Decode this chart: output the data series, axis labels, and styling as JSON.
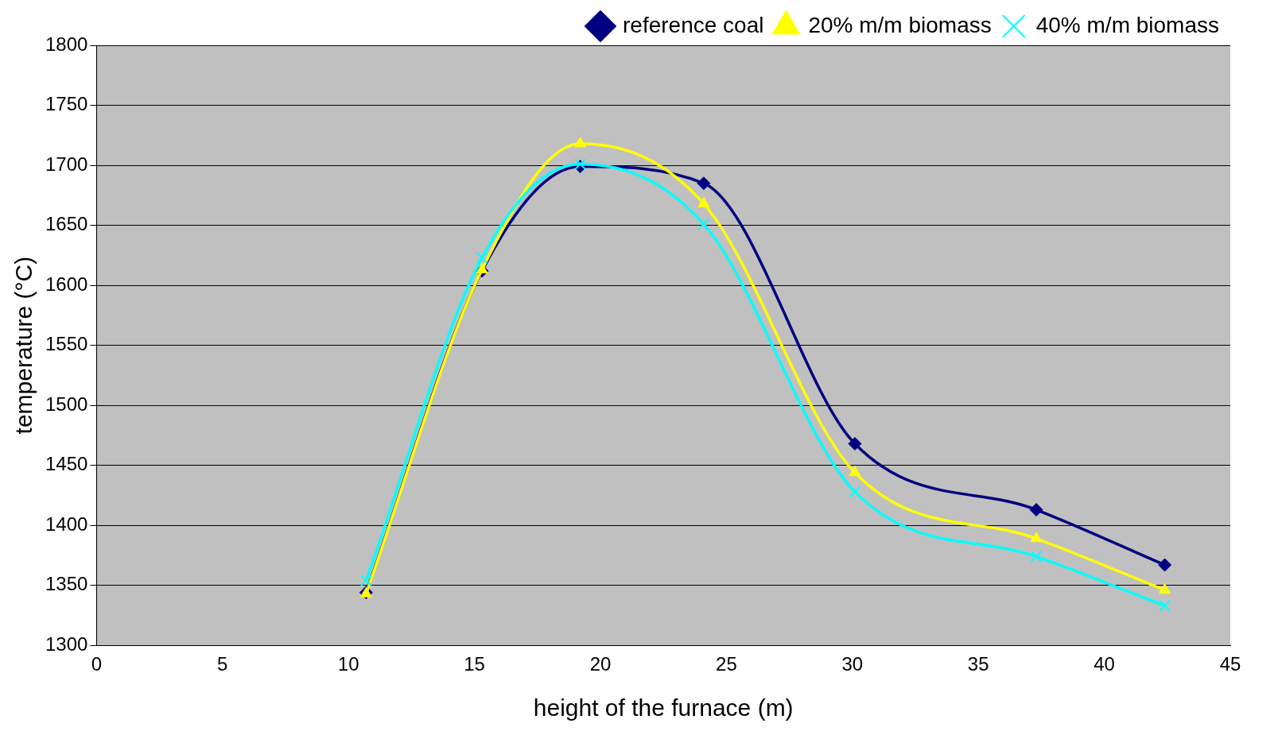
{
  "chart_data": {
    "type": "line",
    "xlabel": "height of the furnace (m)",
    "ylabel": "temperature (°C)",
    "xlim": [
      0,
      45
    ],
    "xticks": [
      0,
      5,
      10,
      15,
      20,
      25,
      30,
      35,
      40,
      45
    ],
    "ylim": [
      1300,
      1800
    ],
    "yticks": [
      1300,
      1350,
      1400,
      1450,
      1500,
      1550,
      1600,
      1650,
      1700,
      1750,
      1800
    ],
    "grid": "y",
    "legend": "top right",
    "x": [
      10.7,
      15.3,
      19.2,
      24.1,
      30.1,
      37.3,
      42.4
    ],
    "series": [
      {
        "name": "reference coal",
        "color": "#000080",
        "marker": "diamond",
        "values": [
          1344,
          1612,
          1699,
          1685,
          1468,
          1413,
          1367
        ]
      },
      {
        "name": "20% m/m biomass",
        "color": "#ffff00",
        "marker": "triangle",
        "values": [
          1343,
          1613,
          1718,
          1668,
          1444,
          1389,
          1346
        ]
      },
      {
        "name": "40% m/m biomass",
        "color": "#00ffff",
        "marker": "cross",
        "values": [
          1354,
          1623,
          1701,
          1651,
          1428,
          1374,
          1333
        ]
      }
    ]
  }
}
